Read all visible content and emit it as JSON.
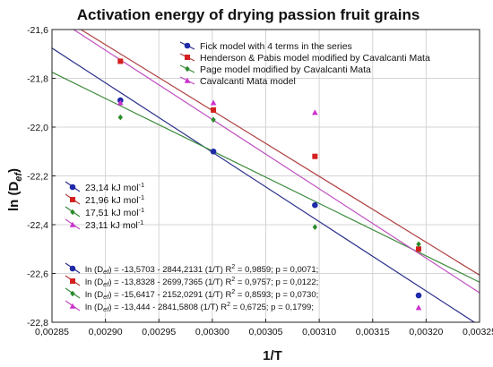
{
  "chart_data": {
    "type": "scatter",
    "title": "Activation energy of drying passion fruit grains",
    "xlabel": "1/T",
    "ylabel": "ln (D",
    "ylabel_sub": "ef",
    "ylabel_close": ")",
    "xlim": [
      0.00285,
      0.00325
    ],
    "ylim": [
      -22.8,
      -21.6
    ],
    "xticks": [
      "0,00285",
      "0,00290",
      "0,00295",
      "0,00300",
      "0,00305",
      "0,00310",
      "0,00315",
      "0,00320",
      "0,00325"
    ],
    "yticks": [
      "-21,6",
      "-21,8",
      "-22,0",
      "-22,2",
      "-22,4",
      "-22,6",
      "-22,8"
    ],
    "xtick_values": [
      0.00285,
      0.0029,
      0.00295,
      0.003,
      0.00305,
      0.0031,
      0.00315,
      0.0032,
      0.00325
    ],
    "ytick_values": [
      -21.6,
      -21.8,
      -22.0,
      -22.2,
      -22.4,
      -22.6,
      -22.8
    ],
    "grid": true,
    "legend_position": "top-right",
    "series": [
      {
        "name": "Fick model with 4 terms in the series",
        "color": "#1f2aa8",
        "line_color": "#2b2f8a",
        "marker": "circle",
        "intercept": -13.5703,
        "slope": -2844.2131,
        "x": [
          0.002914,
          0.003001,
          0.003096,
          0.003193
        ],
        "y": [
          -21.89,
          -22.1,
          -22.32,
          -22.69
        ],
        "ea_label": "23,14 kJ mol",
        "equation": "ln (D",
        "equation_sub": "ef",
        "equation_rest": ") = -13,5703 - 2844,2131 (1/T)  R",
        "equation_r2": " = 0,9859;  p = 0,0071;"
      },
      {
        "name": "Henderson & Pabis model modified by Cavalcanti Mata",
        "color": "#d42020",
        "line_color": "#b04040",
        "marker": "square",
        "intercept": -13.8328,
        "slope": -2699.7365,
        "x": [
          0.002914,
          0.003001,
          0.003096,
          0.003193
        ],
        "y": [
          -21.73,
          -21.93,
          -22.12,
          -22.5
        ],
        "ea_label": "21,96 kJ mol",
        "equation": "ln (D",
        "equation_sub": "ef",
        "equation_rest": ") = -13,8328 - 2699,7365 (1/T)  R",
        "equation_r2": " = 0,9757;  p = 0,0122;"
      },
      {
        "name": "Page model modified by Cavalcanti Mata",
        "color": "#2a8a2a",
        "line_color": "#3c8a3c",
        "marker": "diamond",
        "intercept": -15.6417,
        "slope": -2152.0291,
        "x": [
          0.002914,
          0.003001,
          0.003096,
          0.003193
        ],
        "y": [
          -21.96,
          -21.97,
          -22.41,
          -22.48
        ],
        "ea_label": "17,51 kJ mol",
        "equation": "ln (D",
        "equation_sub": "ef",
        "equation_rest": ") = -15,6417 - 2152,0291 (1/T)  R",
        "equation_r2": " = 0,8593;  p = 0,0730;"
      },
      {
        "name": "Cavalcanti Mata model",
        "color": "#cc30cc",
        "line_color": "#c050c0",
        "marker": "triangle",
        "intercept": -13.444,
        "slope": -2841.5808,
        "x": [
          0.002914,
          0.003001,
          0.003096,
          0.003193
        ],
        "y": [
          -21.9,
          -21.9,
          -21.94,
          -22.74
        ],
        "ea_label": "23,11 kJ mol",
        "equation": "ln (D",
        "equation_sub": "ef",
        "equation_rest": ") = -13,444 - 2841,5808 (1/T)  R",
        "equation_r2": " = 0,6725;  p = 0,1799;"
      }
    ],
    "ea_unit_exp": "-1",
    "r2_exp": "2"
  }
}
